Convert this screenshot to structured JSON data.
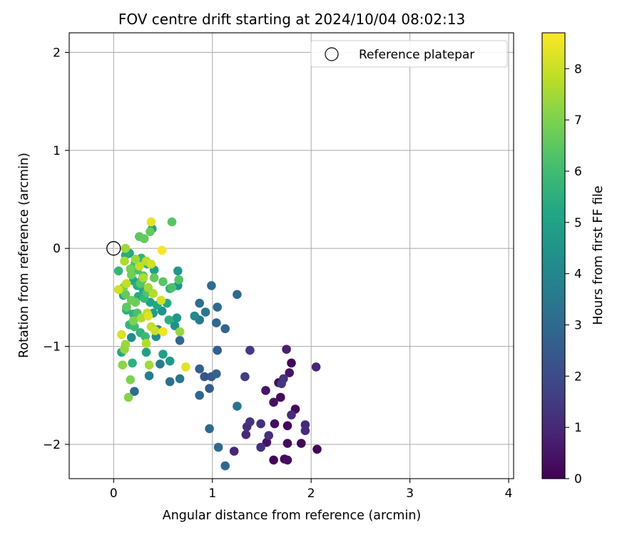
{
  "chart_data": {
    "type": "scatter",
    "title": "FOV centre drift starting at 2024/10/04 08:02:13",
    "xlabel": "Angular distance from reference (arcmin)",
    "ylabel": "Rotation from reference (arcmin)",
    "xlim": [
      -0.45,
      4.05
    ],
    "ylim": [
      -2.35,
      2.2
    ],
    "x_ticks": [
      0,
      1,
      2,
      3,
      4
    ],
    "y_ticks": [
      -2,
      -1,
      0,
      1,
      2
    ],
    "x_tick_labels": [
      "0",
      "1",
      "2",
      "3",
      "4"
    ],
    "y_tick_labels": [
      "−2",
      "−1",
      "0",
      "1",
      "2"
    ],
    "grid": true,
    "legend": {
      "label": "Reference platepar",
      "placement": "top-right"
    },
    "reference_point": {
      "x": 0,
      "y": 0
    },
    "colorbar": {
      "label": "Hours from first FF file",
      "colormap": "viridis",
      "range": [
        0,
        8.7
      ],
      "ticks": [
        0,
        1,
        2,
        3,
        4,
        5,
        6,
        7,
        8
      ],
      "tick_labels": [
        "0",
        "1",
        "2",
        "3",
        "4",
        "5",
        "6",
        "7",
        "8"
      ]
    },
    "point_fields": [
      "x",
      "y",
      "hours"
    ],
    "points": [
      [
        1.62,
        -2.16,
        0.1
      ],
      [
        1.73,
        -2.15,
        0.2
      ],
      [
        1.76,
        -2.16,
        0.3
      ],
      [
        1.55,
        -1.98,
        0.4
      ],
      [
        1.63,
        -1.79,
        0.3
      ],
      [
        1.76,
        -1.81,
        0.1
      ],
      [
        1.84,
        -1.64,
        0.2
      ],
      [
        1.76,
        -1.99,
        0.2
      ],
      [
        1.9,
        -1.99,
        0.1
      ],
      [
        2.06,
        -2.05,
        0.1
      ],
      [
        1.69,
        -1.52,
        0.2
      ],
      [
        1.62,
        -1.57,
        0.4
      ],
      [
        1.67,
        -1.37,
        0.3
      ],
      [
        1.54,
        -1.45,
        0.5
      ],
      [
        1.78,
        -1.27,
        0.5
      ],
      [
        1.8,
        -1.17,
        0.1
      ],
      [
        1.75,
        -1.03,
        0.8
      ],
      [
        2.05,
        -1.21,
        0.9
      ],
      [
        1.72,
        -1.33,
        1.3
      ],
      [
        1.7,
        -1.38,
        1.4
      ],
      [
        1.8,
        -1.7,
        1.1
      ],
      [
        1.94,
        -1.8,
        1.0
      ],
      [
        1.94,
        -1.86,
        1.1
      ],
      [
        1.49,
        -1.79,
        1.2
      ],
      [
        1.57,
        -1.91,
        1.2
      ],
      [
        1.49,
        -2.03,
        1.2
      ],
      [
        1.35,
        -1.82,
        1.2
      ],
      [
        1.34,
        -1.9,
        1.0
      ],
      [
        1.38,
        -1.77,
        1.3
      ],
      [
        1.22,
        -2.07,
        0.9
      ],
      [
        1.38,
        -1.04,
        1.5
      ],
      [
        1.33,
        -1.31,
        1.6
      ],
      [
        0.99,
        -1.31,
        2.5
      ],
      [
        0.92,
        -1.31,
        2.4
      ],
      [
        0.87,
        -1.23,
        2.6
      ],
      [
        0.97,
        -1.43,
        2.5
      ],
      [
        1.04,
        -1.28,
        2.8
      ],
      [
        0.87,
        -1.5,
        2.9
      ],
      [
        0.97,
        -1.84,
        2.9
      ],
      [
        1.06,
        -2.03,
        3.0
      ],
      [
        1.13,
        -2.22,
        3.0
      ],
      [
        1.05,
        -1.04,
        2.6
      ],
      [
        1.13,
        -0.82,
        2.8
      ],
      [
        1.04,
        -0.76,
        2.9
      ],
      [
        1.05,
        -0.6,
        3.0
      ],
      [
        0.93,
        -0.65,
        3.4
      ],
      [
        0.87,
        -0.73,
        3.5
      ],
      [
        0.87,
        -0.56,
        3.1
      ],
      [
        0.99,
        -0.38,
        3.1
      ],
      [
        1.25,
        -0.47,
        3.0
      ],
      [
        1.25,
        -1.61,
        3.3
      ],
      [
        0.67,
        -0.94,
        2.9
      ],
      [
        0.67,
        -1.33,
        3.4
      ],
      [
        0.57,
        -1.36,
        3.2
      ],
      [
        0.47,
        -1.18,
        3.5
      ],
      [
        0.36,
        -1.3,
        3.7
      ],
      [
        0.21,
        -1.46,
        3.1
      ],
      [
        0.82,
        -0.69,
        4.1
      ],
      [
        0.64,
        -0.71,
        4.6
      ],
      [
        0.65,
        -0.38,
        4.5
      ],
      [
        0.65,
        -0.23,
        4.6
      ],
      [
        0.62,
        -0.79,
        4.3
      ],
      [
        0.57,
        -1.15,
        4.7
      ],
      [
        0.5,
        -1.08,
        4.9
      ],
      [
        0.43,
        -0.9,
        4.2
      ],
      [
        0.45,
        -0.83,
        4.4
      ],
      [
        0.4,
        -0.66,
        4.8
      ],
      [
        0.37,
        -0.55,
        5.0
      ],
      [
        0.49,
        -0.64,
        4.5
      ],
      [
        0.33,
        -1.06,
        4.9
      ],
      [
        0.18,
        -0.91,
        4.2
      ],
      [
        0.08,
        -1.06,
        5.2
      ],
      [
        0.19,
        -1.17,
        5.6
      ],
      [
        0.57,
        -0.41,
        5.4
      ],
      [
        0.56,
        -0.73,
        5.5
      ],
      [
        0.54,
        -0.56,
        5.3
      ],
      [
        0.44,
        -0.58,
        5.2
      ],
      [
        0.39,
        0.2,
        5.1
      ],
      [
        0.41,
        -0.22,
        5.0
      ],
      [
        0.3,
        -0.42,
        5.3
      ],
      [
        0.25,
        -0.49,
        5.4
      ],
      [
        0.2,
        -0.67,
        5.6
      ],
      [
        0.16,
        -0.78,
        5.7
      ],
      [
        0.13,
        -0.63,
        5.5
      ],
      [
        0.27,
        -0.86,
        5.6
      ],
      [
        0.32,
        -0.9,
        5.9
      ],
      [
        0.2,
        -0.33,
        5.2
      ],
      [
        0.1,
        -0.48,
        5.1
      ],
      [
        0.24,
        -0.38,
        5.4
      ],
      [
        0.29,
        -0.32,
        5.5
      ],
      [
        0.31,
        -0.51,
        5.8
      ],
      [
        0.34,
        -0.16,
        5.7
      ],
      [
        0.28,
        -0.1,
        5.6
      ],
      [
        0.22,
        -0.14,
        5.5
      ],
      [
        0.16,
        -0.05,
        5.2
      ],
      [
        0.12,
        -0.07,
        5.4
      ],
      [
        0.05,
        -0.23,
        5.7
      ],
      [
        0.19,
        -0.2,
        6.1
      ],
      [
        0.24,
        -0.22,
        6.2
      ],
      [
        0.3,
        -0.28,
        6.3
      ],
      [
        0.21,
        -0.8,
        6.0
      ],
      [
        0.24,
        -0.66,
        6.2
      ],
      [
        0.09,
        -0.43,
        6.3
      ],
      [
        0.59,
        0.27,
        6.4
      ],
      [
        0.26,
        0.12,
        6.5
      ],
      [
        0.31,
        0.1,
        6.6
      ],
      [
        0.37,
        0.17,
        6.6
      ],
      [
        0.59,
        -0.4,
        6.2
      ],
      [
        0.66,
        -0.32,
        6.3
      ],
      [
        0.5,
        -0.34,
        6.4
      ],
      [
        0.41,
        -0.3,
        6.6
      ],
      [
        0.34,
        -0.45,
        6.3
      ],
      [
        0.27,
        -0.36,
        6.4
      ],
      [
        0.22,
        -0.55,
        6.7
      ],
      [
        0.18,
        -0.53,
        6.8
      ],
      [
        0.12,
        -0.47,
        6.6
      ],
      [
        0.1,
        -0.4,
        6.9
      ],
      [
        0.13,
        -0.6,
        6.5
      ],
      [
        0.17,
        -0.21,
        6.9
      ],
      [
        0.18,
        -0.27,
        6.8
      ],
      [
        0.2,
        -0.74,
        7.0
      ],
      [
        0.17,
        -1.34,
        7.0
      ],
      [
        0.15,
        -1.52,
        7.1
      ],
      [
        0.09,
        -1.19,
        7.2
      ],
      [
        0.12,
        -0.98,
        7.4
      ],
      [
        0.11,
        -1.03,
        7.3
      ],
      [
        0.67,
        -0.85,
        7.3
      ],
      [
        0.36,
        -1.19,
        7.5
      ],
      [
        0.33,
        -0.97,
        7.7
      ],
      [
        0.38,
        -0.8,
        7.9
      ],
      [
        0.42,
        -0.84,
        8.0
      ],
      [
        0.28,
        -0.71,
        7.6
      ],
      [
        0.34,
        -0.66,
        7.8
      ],
      [
        0.4,
        -0.46,
        7.7
      ],
      [
        0.35,
        -0.4,
        7.5
      ],
      [
        0.3,
        -0.3,
        7.6
      ],
      [
        0.26,
        -0.18,
        7.9
      ],
      [
        0.33,
        -0.13,
        7.8
      ],
      [
        0.38,
        -0.16,
        8.1
      ],
      [
        0.22,
        -0.11,
        7.4
      ],
      [
        0.12,
        0.0,
        7.4
      ],
      [
        0.11,
        -0.13,
        7.6
      ],
      [
        0.13,
        -0.36,
        7.9
      ],
      [
        0.08,
        -0.88,
        8.2
      ],
      [
        0.05,
        -0.42,
        8.1
      ],
      [
        0.49,
        -0.02,
        8.6
      ],
      [
        0.38,
        0.27,
        8.4
      ],
      [
        0.35,
        -0.69,
        8.3
      ],
      [
        0.5,
        -0.85,
        8.5
      ],
      [
        0.73,
        -1.21,
        8.3
      ],
      [
        0.48,
        -0.53,
        8.1
      ]
    ]
  }
}
